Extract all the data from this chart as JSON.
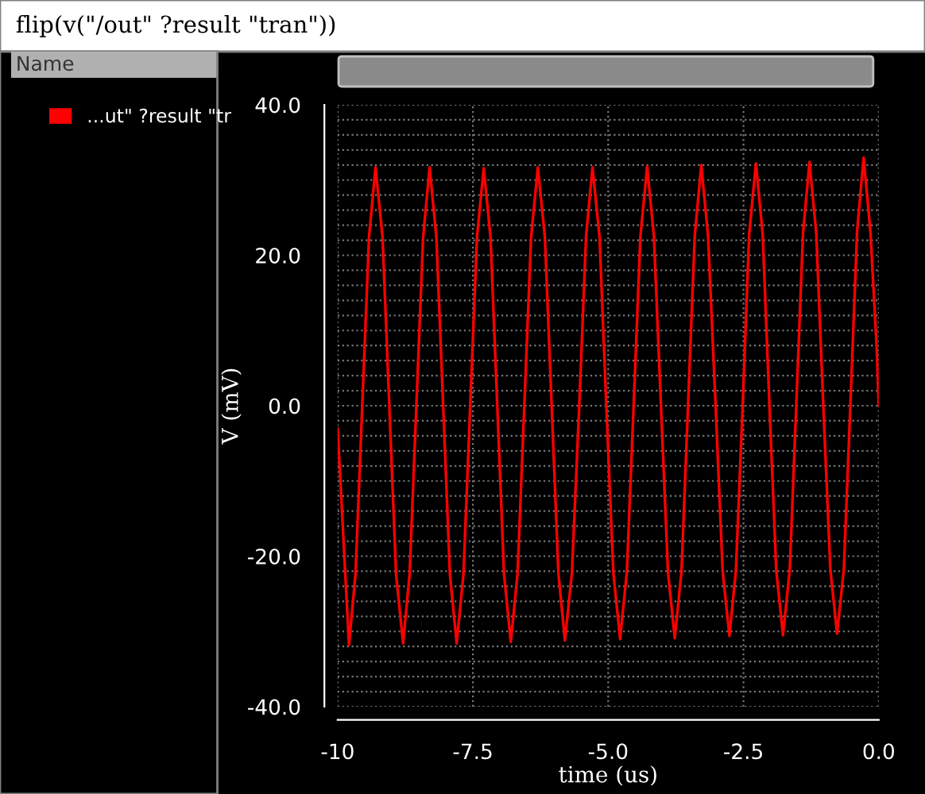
{
  "chart_data": {
    "type": "line",
    "title": "flip(v(\"/out\" ?result \"tran\"))",
    "xlabel": "time (us)",
    "ylabel": "V (mV)",
    "annotations": [
      "Name"
    ],
    "xlim": [
      -10,
      0
    ],
    "xticks": [
      {
        "value": -10,
        "label": "-10"
      },
      {
        "value": -7.5,
        "label": "-7.5"
      },
      {
        "value": -5,
        "label": "-5.0"
      },
      {
        "value": -2.5,
        "label": "-2.5"
      },
      {
        "value": 0,
        "label": "0.0"
      }
    ],
    "ylim": [
      -40,
      40
    ],
    "yticks": [
      {
        "value": -40,
        "label": "-40.0"
      },
      {
        "value": -20,
        "label": "-20.0"
      },
      {
        "value": 0,
        "label": "0.0"
      },
      {
        "value": 20,
        "label": "20.0"
      },
      {
        "value": 40,
        "label": "40.0"
      }
    ],
    "grid": true,
    "legend": "left",
    "marker": "none",
    "line_style": "solid",
    "series": [
      {
        "name": "...ut\" ?result \"tr",
        "color": "#ff0000",
        "x": [
          -10.0,
          -9.79,
          -9.67,
          -9.545,
          -9.42,
          -9.3,
          -9.17,
          -9.045,
          -8.92,
          -8.79,
          -8.67,
          -8.545,
          -8.42,
          -8.3,
          -8.175,
          -8.05,
          -7.925,
          -7.8,
          -7.675,
          -7.55,
          -7.425,
          -7.3,
          -7.175,
          -7.05,
          -6.925,
          -6.8,
          -6.675,
          -6.55,
          -6.425,
          -6.3,
          -6.17,
          -6.045,
          -5.92,
          -5.8,
          -5.67,
          -5.535,
          -5.41,
          -5.29,
          -5.16,
          -5.035,
          -4.905,
          -4.78,
          -4.655,
          -4.53,
          -4.405,
          -4.28,
          -4.155,
          -4.025,
          -3.895,
          -3.77,
          -3.645,
          -3.525,
          -3.4,
          -3.28,
          -3.155,
          -3.015,
          -2.885,
          -2.76,
          -2.64,
          -2.515,
          -2.395,
          -2.27,
          -2.145,
          -2.02,
          -1.895,
          -1.77,
          -1.645,
          -1.525,
          -1.4,
          -1.28,
          -1.155,
          -1.025,
          -0.895,
          -0.77,
          -0.645,
          -0.525,
          -0.4,
          -0.28,
          -0.155,
          -0.04,
          0.0
        ],
        "values": [
          -3,
          -31.8,
          -22.4,
          0,
          22.4,
          31.7,
          22.4,
          0,
          -22.4,
          -31.6,
          -22.4,
          0,
          22.4,
          31.7,
          22.4,
          0,
          -22.4,
          -31.6,
          -22.4,
          0,
          22.4,
          31.6,
          22.4,
          0,
          -22.4,
          -31.4,
          -22.3,
          0,
          22.4,
          31.7,
          22.4,
          0,
          -22.3,
          -31.2,
          -22.2,
          0,
          22.4,
          31.7,
          22.4,
          0,
          -22.2,
          -31.0,
          -22.1,
          0,
          22.5,
          31.8,
          22.5,
          0,
          -22.1,
          -30.9,
          -22,
          0,
          22.6,
          32.0,
          22.6,
          0,
          -22,
          -30.6,
          -21.9,
          0,
          22.8,
          32.2,
          22.8,
          0,
          -21.8,
          -30.5,
          -21.8,
          0,
          22.9,
          32.4,
          22.9,
          0,
          -21.7,
          -30.3,
          -21.7,
          0,
          23.2,
          33.0,
          23.2,
          8,
          0
        ]
      }
    ]
  }
}
